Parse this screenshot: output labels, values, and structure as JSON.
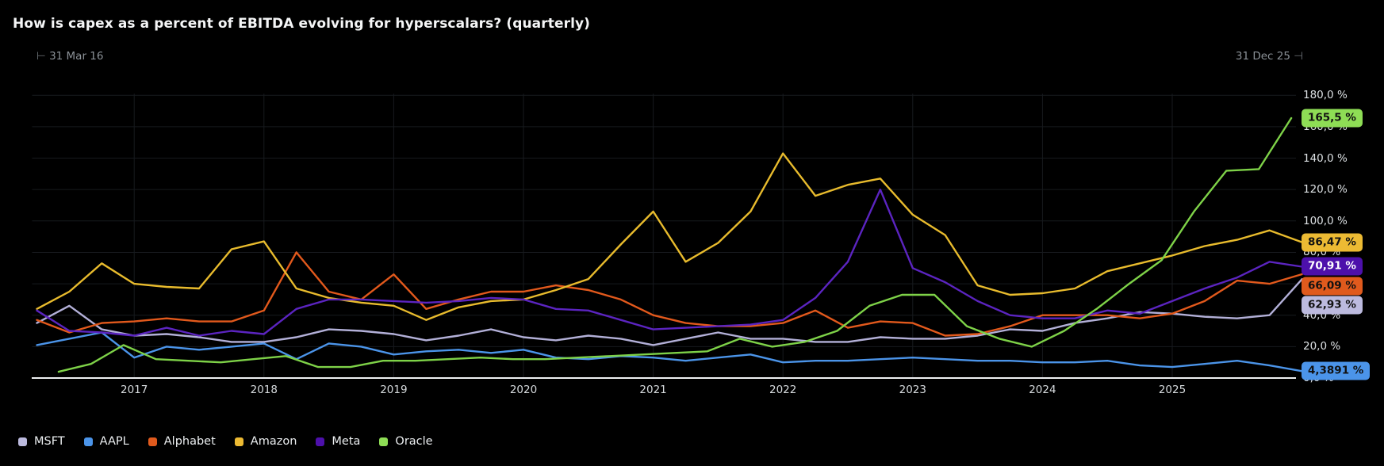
{
  "title": "How is capex as a percent of EBITDA evolving for hyperscalars? (quarterly)",
  "time_range": {
    "start_marker": "⊢",
    "start_label": "31 Mar 16",
    "end_label": "31 Dec 25",
    "end_marker": "⊣"
  },
  "y_axis": {
    "unit": "%",
    "ticks": [
      {
        "value": 180,
        "label": "180,0 %"
      },
      {
        "value": 160,
        "label": "160,0 %"
      },
      {
        "value": 140,
        "label": "140,0 %"
      },
      {
        "value": 120,
        "label": "120,0 %"
      },
      {
        "value": 100,
        "label": "100,0 %"
      },
      {
        "value": 80,
        "label": "80,0 %"
      },
      {
        "value": 60,
        "label": "60,0 %"
      },
      {
        "value": 40,
        "label": "40,0 %"
      },
      {
        "value": 20,
        "label": "20,0 %"
      },
      {
        "value": 0,
        "label": "0,0 %"
      }
    ]
  },
  "x_axis": {
    "year_labels": [
      "2017",
      "2018",
      "2019",
      "2020",
      "2021",
      "2022",
      "2023",
      "2024",
      "2025"
    ]
  },
  "chart_data": {
    "type": "line",
    "frequency": "quarterly",
    "x_start": "31 Mar 16",
    "x_end": "31 Dec 25",
    "ylim": [
      0,
      187
    ],
    "grid": "on",
    "legend_position": "bottom-left",
    "background_color": "#000000",
    "gridline_color": "#171a1e",
    "baseline_color": "#eef0f2",
    "series": [
      {
        "name": "MSFT",
        "color": "#b3b0d8",
        "badge_label": "62,93 %",
        "badge_color": "#bcbade",
        "badge_text_color": "#111111",
        "last_value": 62.93,
        "x_offset_quarters": 0,
        "values": [
          35,
          46,
          31,
          27,
          28,
          26,
          23,
          23,
          26,
          31,
          30,
          28,
          24,
          27,
          31,
          26,
          24,
          27,
          25,
          21,
          25,
          29,
          25,
          25,
          23,
          23,
          26,
          25,
          25,
          27,
          31,
          30,
          35,
          38,
          42,
          41,
          39,
          38,
          40,
          62.93
        ]
      },
      {
        "name": "AAPL",
        "color": "#4b94e9",
        "badge_label": "4,3891 %",
        "badge_color": "#4b94e9",
        "badge_text_color": "#111111",
        "last_value": 4.3891,
        "x_offset_quarters": 0,
        "values": [
          21,
          25,
          29,
          13,
          20,
          18,
          20,
          22,
          12,
          22,
          20,
          15,
          17,
          18,
          16,
          18,
          13,
          12,
          14,
          13,
          11,
          13,
          15,
          10,
          11,
          11,
          12,
          13,
          12,
          11,
          11,
          10,
          10,
          11,
          8,
          7,
          9,
          11,
          8,
          4.3891
        ]
      },
      {
        "name": "Alphabet",
        "color": "#e2591c",
        "badge_label": "66,09 %",
        "badge_color": "#e05a1d",
        "badge_text_color": "#111111",
        "last_value": 66.09,
        "x_offset_quarters": 0,
        "values": [
          37,
          29,
          35,
          36,
          38,
          36,
          36,
          43,
          80,
          55,
          50,
          66,
          44,
          50,
          55,
          55,
          59,
          56,
          50,
          40,
          35,
          33,
          33,
          35,
          43,
          32,
          36,
          35,
          27,
          28,
          33,
          40,
          40,
          40,
          38,
          41,
          49,
          62,
          60,
          66.09
        ]
      },
      {
        "name": "Amazon",
        "color": "#e8bb2d",
        "badge_label": "86,47 %",
        "badge_color": "#ecba33",
        "badge_text_color": "#111111",
        "last_value": 86.47,
        "x_offset_quarters": 0,
        "values": [
          44,
          55,
          73,
          60,
          58,
          57,
          82,
          87,
          57,
          51,
          48,
          46,
          37,
          45,
          49,
          50,
          56,
          63,
          85,
          106,
          74,
          86,
          106,
          143,
          116,
          123,
          127,
          104,
          91,
          59,
          53,
          54,
          57,
          68,
          73,
          78,
          84,
          88,
          94,
          86.47
        ]
      },
      {
        "name": "Meta",
        "color": "#5b24c0",
        "badge_label": "70,91 %",
        "badge_color": "#4d10ab",
        "badge_text_color": "#ffffff",
        "last_value": 70.91,
        "x_offset_quarters": 0,
        "values": [
          43,
          30,
          29,
          27,
          32,
          27,
          30,
          28,
          44,
          50,
          50,
          49,
          48,
          49,
          51,
          50,
          44,
          43,
          37,
          31,
          32,
          33,
          34,
          37,
          51,
          74,
          120,
          70,
          61,
          49,
          40,
          38,
          38,
          43,
          41,
          49,
          57,
          64,
          74,
          70.91
        ]
      },
      {
        "name": "Oracle",
        "color": "#7ed248",
        "badge_label": "165,5 %",
        "badge_color": "#8edd55",
        "badge_text_color": "#111111",
        "last_value": 165.5,
        "x_offset_quarters": 0.67,
        "values": [
          4,
          9,
          21,
          12,
          11,
          10,
          12,
          14,
          7,
          7,
          11,
          11,
          12,
          13,
          12,
          12,
          13,
          14,
          15,
          16,
          17,
          25,
          20,
          23,
          30,
          46,
          53,
          53,
          33,
          25,
          20,
          30,
          44,
          60,
          75,
          106,
          132,
          133,
          165.5
        ]
      }
    ]
  }
}
